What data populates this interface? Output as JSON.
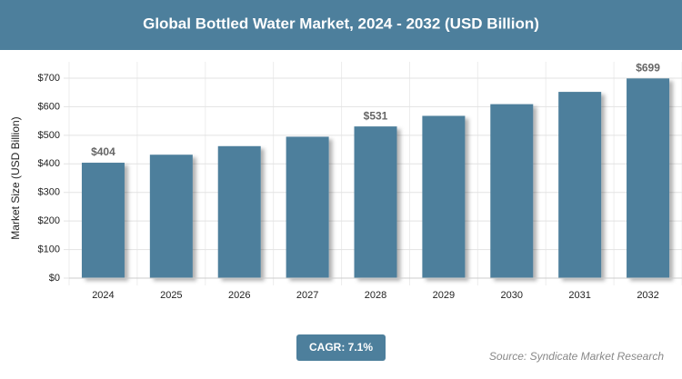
{
  "chart_data": {
    "type": "bar",
    "title": "Global Bottled Water Market, 2024 - 2032 (USD Billion)",
    "y_label": "Market Size (USD Billion)",
    "categories": [
      "2024",
      "2025",
      "2026",
      "2027",
      "2028",
      "2029",
      "2030",
      "2031",
      "2032"
    ],
    "values": [
      404,
      432,
      462,
      495,
      531,
      568,
      609,
      652,
      699
    ],
    "value_labels": [
      "$404",
      null,
      null,
      null,
      "$531",
      null,
      null,
      null,
      "$699"
    ],
    "color": "#4d7f9c",
    "ylim": [
      0,
      700
    ],
    "yticks": [
      {
        "value": 0,
        "label": "$0"
      },
      {
        "value": 100,
        "label": "$100"
      },
      {
        "value": 200,
        "label": "$200"
      },
      {
        "value": 300,
        "label": "$300"
      },
      {
        "value": 400,
        "label": "$400"
      },
      {
        "value": 500,
        "label": "$500"
      },
      {
        "value": 600,
        "label": "$600"
      },
      {
        "value": 700,
        "label": "$700"
      }
    ],
    "grid": true,
    "annotation": "CAGR: 7.1%",
    "source": "Source: Syndicate Market Research"
  }
}
